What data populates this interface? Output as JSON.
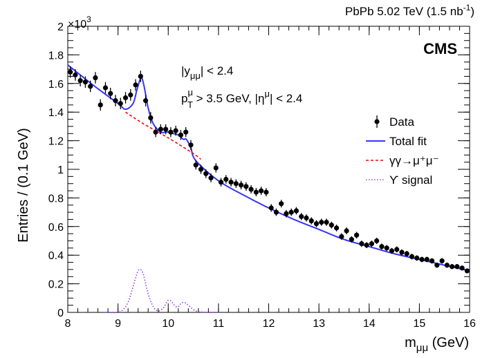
{
  "chart_data": {
    "type": "scatter",
    "header_right": "PbPb 5.02 TeV (1.5 nb",
    "header_right_sup": "-1",
    "header_right_close": ")",
    "experiment": "CMS",
    "annotation_line1": "|y",
    "annotation_line1_sub": "μμ",
    "annotation_line1_rest": "| < 2.4",
    "annotation_line2_p": "p",
    "annotation_line2_sup": "μ",
    "annotation_line2_sub": "T",
    "annotation_line2_rest": " > 3.5 GeV, |η",
    "annotation_line2_sup2": "μ",
    "annotation_line2_rest2": "| < 2.4",
    "xlabel": "m",
    "xlabel_sub": "μμ",
    "xlabel_rest": " (GeV)",
    "ylabel": "Entries / (0.1 GeV)",
    "y_multiplier": "×10",
    "y_multiplier_exp": "3",
    "xlim": [
      8,
      16
    ],
    "ylim": [
      0,
      2.0
    ],
    "x_ticks": [
      "8",
      "9",
      "10",
      "11",
      "12",
      "13",
      "14",
      "15",
      "16"
    ],
    "y_ticks": [
      "0",
      "0.2",
      "0.4",
      "0.6",
      "0.8",
      "1",
      "1.2",
      "1.4",
      "1.6",
      "1.8",
      "2"
    ],
    "legend": {
      "placement": "right",
      "entries": [
        {
          "label": "Data",
          "style": "marker"
        },
        {
          "label": "Total fit",
          "style": "solid",
          "color": "#3333ff"
        },
        {
          "label": "γγ→μ⁺μ⁻",
          "style": "dashed",
          "color": "#ff0000"
        },
        {
          "label": "ϒ signal",
          "style": "dotted",
          "color": "#9933ff"
        }
      ]
    },
    "series": [
      {
        "name": "Data",
        "x": [
          8.05,
          8.15,
          8.25,
          8.35,
          8.45,
          8.55,
          8.65,
          8.75,
          8.85,
          8.95,
          9.05,
          9.15,
          9.25,
          9.35,
          9.45,
          9.55,
          9.65,
          9.75,
          9.85,
          9.95,
          10.05,
          10.15,
          10.25,
          10.35,
          10.45,
          10.55,
          10.65,
          10.75,
          10.85,
          10.95,
          11.05,
          11.15,
          11.25,
          11.35,
          11.45,
          11.55,
          11.65,
          11.75,
          11.85,
          11.95,
          12.05,
          12.15,
          12.25,
          12.35,
          12.45,
          12.55,
          12.65,
          12.75,
          12.85,
          12.95,
          13.05,
          13.15,
          13.25,
          13.35,
          13.45,
          13.55,
          13.65,
          13.75,
          13.85,
          13.95,
          14.05,
          14.15,
          14.25,
          14.35,
          14.45,
          14.55,
          14.65,
          14.75,
          14.85,
          14.95,
          15.05,
          15.15,
          15.25,
          15.35,
          15.45,
          15.55,
          15.65,
          15.75,
          15.85,
          15.95
        ],
        "y": [
          1.68,
          1.66,
          1.62,
          1.61,
          1.58,
          1.64,
          1.45,
          1.57,
          1.53,
          1.48,
          1.46,
          1.5,
          1.52,
          1.59,
          1.65,
          1.48,
          1.36,
          1.26,
          1.28,
          1.28,
          1.26,
          1.27,
          1.24,
          1.26,
          1.17,
          1.03,
          1.0,
          0.97,
          0.94,
          1.01,
          0.91,
          0.93,
          0.91,
          0.9,
          0.89,
          0.88,
          0.86,
          0.84,
          0.85,
          0.84,
          0.73,
          0.7,
          0.76,
          0.69,
          0.7,
          0.71,
          0.67,
          0.66,
          0.64,
          0.62,
          0.63,
          0.63,
          0.61,
          0.59,
          0.53,
          0.57,
          0.51,
          0.54,
          0.48,
          0.47,
          0.48,
          0.5,
          0.46,
          0.45,
          0.43,
          0.44,
          0.42,
          0.41,
          0.39,
          0.38,
          0.37,
          0.37,
          0.36,
          0.33,
          0.36,
          0.33,
          0.32,
          0.32,
          0.31,
          0.29
        ],
        "yerr": [
          0.04,
          0.04,
          0.04,
          0.04,
          0.04,
          0.04,
          0.04,
          0.04,
          0.04,
          0.04,
          0.04,
          0.04,
          0.04,
          0.04,
          0.04,
          0.04,
          0.04,
          0.035,
          0.035,
          0.035,
          0.035,
          0.035,
          0.035,
          0.035,
          0.035,
          0.032,
          0.032,
          0.031,
          0.031,
          0.032,
          0.03,
          0.03,
          0.03,
          0.03,
          0.03,
          0.03,
          0.029,
          0.029,
          0.029,
          0.029,
          0.027,
          0.026,
          0.027,
          0.026,
          0.026,
          0.026,
          0.025,
          0.025,
          0.025,
          0.025,
          0.025,
          0.025,
          0.024,
          0.024,
          0.023,
          0.024,
          0.022,
          0.023,
          0.022,
          0.021,
          0.022,
          0.022,
          0.021,
          0.021,
          0.02,
          0.021,
          0.02,
          0.02,
          0.02,
          0.019,
          0.019,
          0.019,
          0.019,
          0.018,
          0.019,
          0.018,
          0.018,
          0.018,
          0.017,
          0.017
        ]
      },
      {
        "name": "Total fit",
        "x": [
          8.0,
          8.5,
          9.0,
          9.15,
          9.3,
          9.38,
          9.46,
          9.52,
          9.6,
          9.7,
          9.85,
          9.95,
          10.0,
          10.1,
          10.2,
          10.3,
          10.36,
          10.45,
          10.55,
          11.0,
          11.5,
          12.0,
          12.5,
          13.0,
          13.5,
          14.0,
          14.5,
          15.0,
          15.5,
          16.0
        ],
        "y": [
          1.73,
          1.59,
          1.46,
          1.42,
          1.46,
          1.56,
          1.64,
          1.58,
          1.43,
          1.32,
          1.26,
          1.26,
          1.26,
          1.25,
          1.24,
          1.21,
          1.21,
          1.15,
          1.06,
          0.92,
          0.82,
          0.73,
          0.65,
          0.58,
          0.51,
          0.46,
          0.41,
          0.37,
          0.33,
          0.29
        ]
      },
      {
        "name": "γγ→μ⁺μ⁻",
        "x": [
          9.15,
          9.5,
          10.0,
          10.5,
          10.65
        ],
        "y": [
          1.4,
          1.32,
          1.22,
          1.11,
          1.07
        ]
      },
      {
        "name": "ϒ signal",
        "x": [
          8.75,
          9.0,
          9.1,
          9.2,
          9.3,
          9.35,
          9.4,
          9.45,
          9.5,
          9.55,
          9.6,
          9.7,
          9.8,
          9.9,
          9.95,
          10.0,
          10.05,
          10.1,
          10.15,
          10.2,
          10.25,
          10.3,
          10.35,
          10.4,
          10.5,
          10.6,
          10.8,
          11.0
        ],
        "y": [
          0,
          0.0,
          0.02,
          0.07,
          0.18,
          0.24,
          0.29,
          0.3,
          0.27,
          0.2,
          0.13,
          0.04,
          0.01,
          0.03,
          0.06,
          0.085,
          0.08,
          0.06,
          0.04,
          0.04,
          0.06,
          0.07,
          0.065,
          0.05,
          0.02,
          0.005,
          0,
          0
        ]
      }
    ]
  }
}
